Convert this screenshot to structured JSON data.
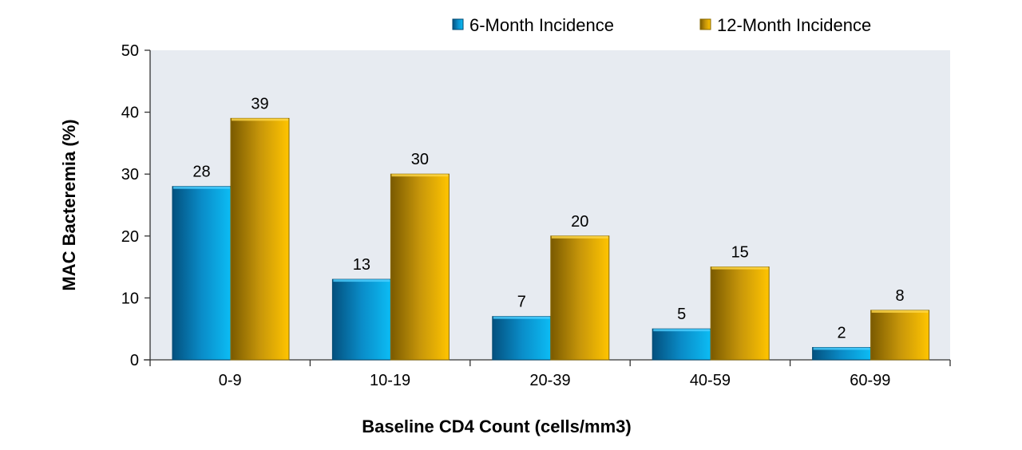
{
  "chart_data": {
    "type": "bar",
    "title": "",
    "xlabel": "Baseline CD4 Count (cells/mm3)",
    "ylabel": "MAC Bacteremia (%)",
    "ylim": [
      0,
      50
    ],
    "yticks": [
      0,
      10,
      20,
      30,
      40,
      50
    ],
    "grid": false,
    "legend_placement": "top",
    "categories": [
      "0-9",
      "10-19",
      "20-39",
      "40-59",
      "60-99"
    ],
    "series": [
      {
        "name": "6-Month Incidence",
        "values": [
          28,
          13,
          7,
          5,
          2
        ],
        "color": "#0a9ad8"
      },
      {
        "name": "12-Month Incidence",
        "values": [
          39,
          30,
          20,
          15,
          8
        ],
        "color": "#d9a400"
      }
    ],
    "plot_background": "#e7ebf1"
  }
}
